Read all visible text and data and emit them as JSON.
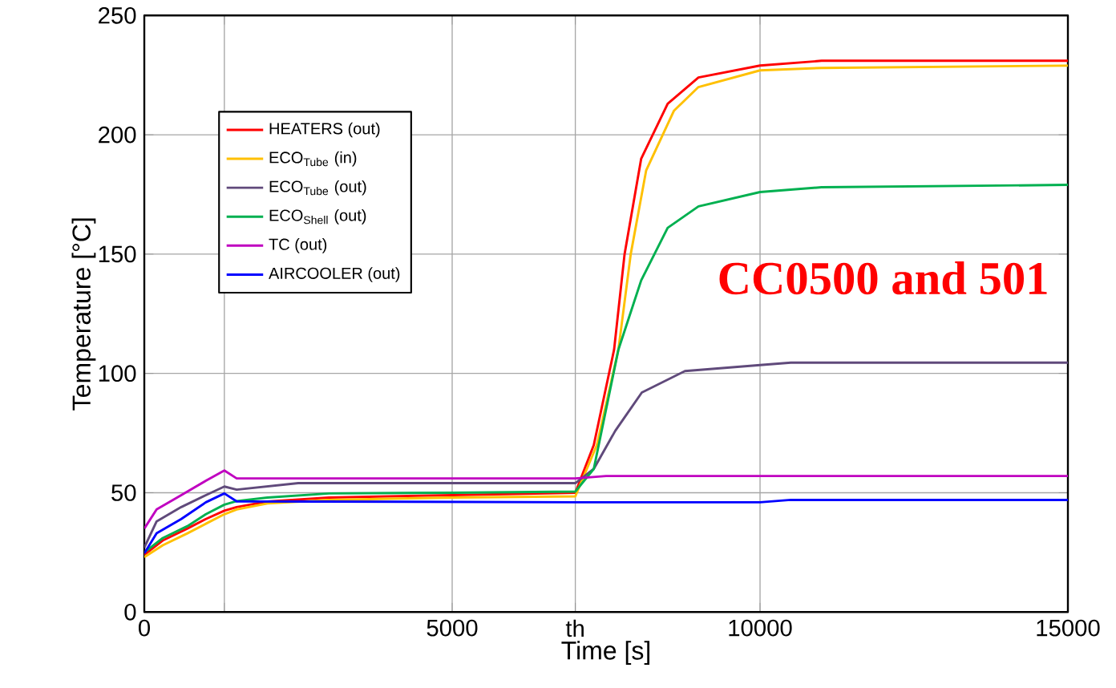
{
  "chart_data": {
    "type": "line",
    "xlabel": "Time [s]",
    "ylabel": "Temperature [°C]",
    "xlim": [
      0,
      15000
    ],
    "ylim": [
      0,
      250
    ],
    "xticks": [
      0,
      {
        "value": 1300,
        "label": null
      },
      5000,
      {
        "value": 7000,
        "label": "th"
      },
      10000,
      15000
    ],
    "yticks": [
      0,
      50,
      100,
      150,
      200,
      250
    ],
    "grid": true,
    "legend": "top left",
    "marker": "none",
    "line_style": "solid",
    "annotations": [
      "CC0500 and 501"
    ],
    "series": [
      {
        "name": "HEATERS (out)",
        "color": "#ff0000",
        "x": [
          0,
          300,
          700,
          1000,
          1300,
          1500,
          2000,
          3000,
          5000,
          7000,
          7300,
          7630,
          7800,
          8070,
          8500,
          9000,
          10000,
          11000,
          15000
        ],
        "values": [
          24,
          30,
          35,
          39,
          42.5,
          44,
          46.3,
          48,
          49,
          50,
          70,
          110,
          150,
          190,
          213,
          224,
          229,
          231,
          231
        ]
      },
      {
        "name": "ECO$_{Tube}$  (in)",
        "color": "#ffc000",
        "x": [
          0,
          300,
          700,
          1000,
          1300,
          1500,
          2000,
          3000,
          5000,
          7000,
          7350,
          7700,
          7900,
          8150,
          8600,
          9000,
          10000,
          11000,
          15000
        ],
        "values": [
          23,
          28,
          33,
          37,
          41,
          43,
          45.5,
          47,
          48,
          48.5,
          70,
          110,
          150,
          185,
          210,
          220,
          227,
          228,
          229
        ]
      },
      {
        "name": "ECO$_{Tube}$ (out)",
        "color": "#604a7b",
        "x": [
          0,
          200,
          600,
          1000,
          1300,
          1500,
          2500,
          5000,
          7000,
          7300,
          7650,
          8080,
          8780,
          10000,
          10500,
          15000
        ],
        "values": [
          27,
          38,
          44,
          49,
          52.6,
          51.3,
          54,
          54,
          54,
          60,
          76,
          92,
          101,
          103.5,
          104.5,
          104.5
        ]
      },
      {
        "name": "ECO$_{Shell}$ (out)",
        "color": "#00b050",
        "x": [
          0,
          300,
          700,
          1000,
          1300,
          1500,
          2000,
          3000,
          5000,
          7000,
          7300,
          7700,
          8070,
          8500,
          9000,
          10000,
          11000,
          15000
        ],
        "values": [
          25,
          31,
          36,
          41,
          45,
          46.5,
          48,
          49.7,
          50,
          50.5,
          60,
          110,
          139,
          161,
          170,
          176,
          178,
          179
        ]
      },
      {
        "name": "TC (out)",
        "color": "#c000c0",
        "x": [
          0,
          200,
          600,
          1000,
          1300,
          1500,
          5000,
          7000,
          7500,
          15000
        ],
        "values": [
          35,
          43,
          49,
          55,
          59.3,
          56,
          56,
          56,
          57,
          57
        ]
      },
      {
        "name": "AIRCOOLER  (out)",
        "color": "#0000ff",
        "x": [
          0,
          200,
          600,
          1000,
          1300,
          1500,
          7000,
          10000,
          10500,
          15000
        ],
        "values": [
          24.6,
          33,
          39,
          46,
          49.7,
          46.4,
          46,
          46,
          47,
          47
        ]
      }
    ]
  }
}
